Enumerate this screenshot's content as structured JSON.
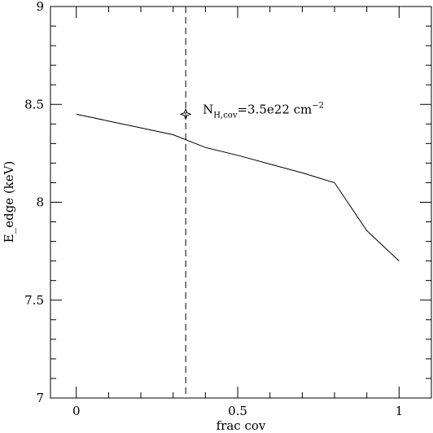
{
  "chart_data": {
    "type": "line",
    "title": "",
    "xlabel": "frac cov",
    "ylabel": "E_edge (keV)",
    "xlim": [
      -0.08,
      1.1
    ],
    "ylim": [
      7.0,
      9.0
    ],
    "xticks": {
      "major": [
        0,
        0.5,
        1
      ],
      "major_labels": [
        "0",
        "0.5",
        "1"
      ],
      "minor_step": 0.1
    },
    "yticks": {
      "major": [
        7,
        7.5,
        8,
        8.5,
        9
      ],
      "major_labels": [
        "7",
        "7.5",
        "8",
        "8.5",
        "9"
      ],
      "minor_step": 0.1
    },
    "grid": false,
    "series": [
      {
        "x": [
          0,
          0.1,
          0.2,
          0.3,
          0.4,
          0.5,
          0.6,
          0.7,
          0.8,
          0.9,
          1.0
        ],
        "y": [
          8.45,
          8.415,
          8.38,
          8.345,
          8.28,
          8.24,
          8.195,
          8.15,
          8.1,
          7.855,
          7.7
        ]
      }
    ],
    "reference_line": {
      "orientation": "vertical",
      "x": 0.339,
      "style": "dashed"
    },
    "marker": {
      "shape": "star",
      "x": 0.339,
      "y": 8.45
    },
    "annotation": {
      "main": "N",
      "subscript": "H,cov",
      "value": "=3.5e22  cm",
      "superscript": "−2"
    }
  }
}
